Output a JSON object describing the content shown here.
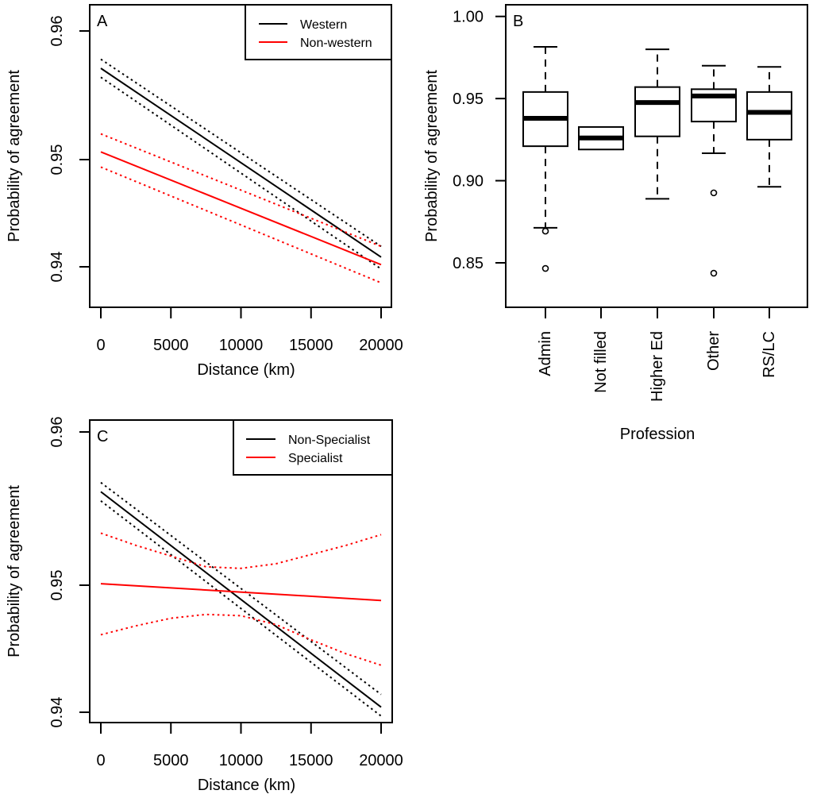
{
  "figure": {
    "panels": [
      "A",
      "B",
      "C"
    ]
  },
  "chart_data": [
    {
      "id": "A",
      "type": "line",
      "panel_label": "A",
      "xlabel": "Distance (km)",
      "ylabel": "Probability of agreement",
      "xlim": [
        0,
        20000
      ],
      "ylim": [
        0.936,
        0.962
      ],
      "x_ticks": [
        0,
        5000,
        10000,
        15000,
        20000
      ],
      "x_tick_labels": [
        "0",
        "5000",
        "10000",
        "15000",
        "20000"
      ],
      "y_ticks": [
        0.94,
        0.95,
        0.96
      ],
      "y_tick_labels": [
        "0.94",
        "0.95",
        "0.96"
      ],
      "legend": {
        "position": "top-right",
        "entries": [
          {
            "label": "Western",
            "color": "#000000"
          },
          {
            "label": "Non-western",
            "color": "#ff0000"
          }
        ]
      },
      "series": [
        {
          "name": "Western",
          "color": "#000000",
          "style": "solid",
          "x": [
            0,
            20000
          ],
          "y": [
            0.9571,
            0.9409
          ]
        },
        {
          "name": "Western upper CI",
          "color": "#000000",
          "style": "dotted",
          "x": [
            0,
            20000
          ],
          "y": [
            0.9578,
            0.9419
          ]
        },
        {
          "name": "Western lower CI",
          "color": "#000000",
          "style": "dotted",
          "x": [
            0,
            20000
          ],
          "y": [
            0.9564,
            0.9398
          ]
        },
        {
          "name": "Non-western",
          "color": "#ff0000",
          "style": "solid",
          "x": [
            0,
            20000
          ],
          "y": [
            0.9506,
            0.9402
          ]
        },
        {
          "name": "Non-western upper CI",
          "color": "#ff0000",
          "style": "dotted",
          "x": [
            0,
            20000
          ],
          "y": [
            0.952,
            0.9419
          ]
        },
        {
          "name": "Non-western lower CI",
          "color": "#ff0000",
          "style": "dotted",
          "x": [
            0,
            20000
          ],
          "y": [
            0.9493,
            0.9385
          ]
        }
      ]
    },
    {
      "id": "B",
      "type": "box",
      "panel_label": "B",
      "xlabel": "Profession",
      "ylabel": "Probability of agreement",
      "ylim": [
        0.82,
        1.007
      ],
      "y_ticks": [
        0.85,
        0.9,
        0.95,
        1.0
      ],
      "y_tick_labels": [
        "0.85",
        "0.90",
        "0.95",
        "1.00"
      ],
      "categories": [
        "Admin",
        "Not filled",
        "Higher Ed",
        "Other",
        "RS/LC"
      ],
      "boxes": [
        {
          "category": "Admin",
          "whisker_low": 0.8713,
          "q1": 0.921,
          "median": 0.938,
          "q3": 0.954,
          "whisker_high": 0.9815,
          "outliers": [
            0.8693,
            0.8466
          ]
        },
        {
          "category": "Not filled",
          "whisker_low": 0.919,
          "q1": 0.919,
          "median": 0.926,
          "q3": 0.9327,
          "whisker_high": 0.9327,
          "outliers": []
        },
        {
          "category": "Higher Ed",
          "whisker_low": 0.889,
          "q1": 0.927,
          "median": 0.9476,
          "q3": 0.957,
          "whisker_high": 0.98,
          "outliers": []
        },
        {
          "category": "Other",
          "whisker_low": 0.9167,
          "q1": 0.936,
          "median": 0.9516,
          "q3": 0.9557,
          "whisker_high": 0.97,
          "outliers": [
            0.8926,
            0.8437
          ]
        },
        {
          "category": "RS/LC",
          "whisker_low": 0.8963,
          "q1": 0.925,
          "median": 0.9416,
          "q3": 0.954,
          "whisker_high": 0.9693,
          "outliers": []
        }
      ]
    },
    {
      "id": "C",
      "type": "line",
      "panel_label": "C",
      "xlabel": "Distance (km)",
      "ylabel": "Probability of agreement",
      "xlim": [
        0,
        20000
      ],
      "ylim": [
        0.937,
        0.962
      ],
      "x_ticks": [
        0,
        5000,
        10000,
        15000,
        20000
      ],
      "x_tick_labels": [
        "0",
        "5000",
        "10000",
        "15000",
        "20000"
      ],
      "y_ticks": [
        0.94,
        0.95,
        0.96
      ],
      "y_tick_labels": [
        "0.94",
        "0.95",
        "0.96"
      ],
      "legend": {
        "position": "top-right",
        "entries": [
          {
            "label": "Non-Specialist",
            "color": "#000000"
          },
          {
            "label": "Specialist",
            "color": "#ff0000"
          }
        ]
      },
      "series": [
        {
          "name": "Non-Specialist",
          "color": "#000000",
          "style": "solid",
          "x": [
            0,
            20000
          ],
          "y": [
            0.9561,
            0.9404
          ]
        },
        {
          "name": "Non-Specialist upper CI",
          "color": "#000000",
          "style": "dotted",
          "x": [
            0,
            20000
          ],
          "y": [
            0.9567,
            0.9414
          ]
        },
        {
          "name": "Non-Specialist lower CI",
          "color": "#000000",
          "style": "dotted",
          "x": [
            0,
            20000
          ],
          "y": [
            0.9555,
            0.9397
          ]
        },
        {
          "name": "Specialist",
          "color": "#ff0000",
          "style": "solid",
          "x": [
            0,
            20000
          ],
          "y": [
            0.9501,
            0.9488
          ]
        },
        {
          "name": "Specialist upper CI",
          "color": "#ff0000",
          "style": "dotted",
          "x": [
            0,
            2500,
            5000,
            7500,
            10000,
            12500,
            15000,
            17500,
            20000
          ],
          "y": [
            0.9534,
            0.9526,
            0.9519,
            0.9512,
            0.9511,
            0.9514,
            0.952,
            0.9526,
            0.9533
          ]
        },
        {
          "name": "Specialist lower CI",
          "color": "#ff0000",
          "style": "dotted",
          "x": [
            0,
            2500,
            5000,
            7500,
            10000,
            12500,
            15000,
            17500,
            20000
          ],
          "y": [
            0.9461,
            0.9468,
            0.9474,
            0.9477,
            0.9476,
            0.9469,
            0.9457,
            0.9446,
            0.9437
          ]
        }
      ]
    }
  ]
}
